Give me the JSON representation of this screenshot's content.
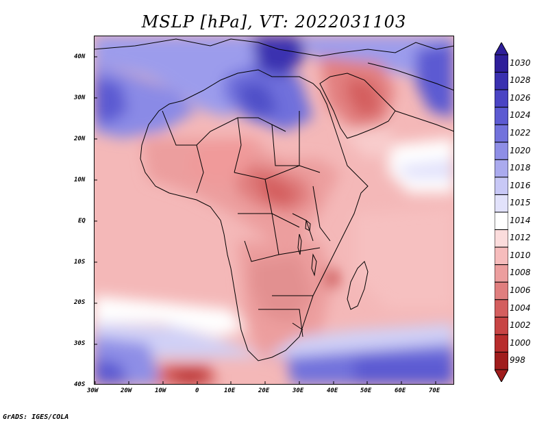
{
  "title": "MSLP [hPa], VT: 2022031103",
  "credit": "GrADS: IGES/COLA",
  "lat_labels": [
    "40N",
    "30N",
    "20N",
    "10N",
    "EQ",
    "10S",
    "20S",
    "30S",
    "40S"
  ],
  "lon_labels": [
    "30W",
    "20W",
    "10W",
    "0",
    "10E",
    "20E",
    "30E",
    "40E",
    "50E",
    "60E",
    "70E"
  ],
  "colorbar": {
    "labels": [
      "1030",
      "1028",
      "1026",
      "1024",
      "1022",
      "1020",
      "1018",
      "1016",
      "1015",
      "1014",
      "1012",
      "1010",
      "1008",
      "1006",
      "1004",
      "1002",
      "1000",
      "998"
    ],
    "colors": [
      "#2e1e9a",
      "#3a30b0",
      "#4a44c4",
      "#5c5ad2",
      "#7272dc",
      "#8e8ee6",
      "#aaaaee",
      "#c8c8f6",
      "#e2e2fb",
      "#ffffff",
      "#fbdcdc",
      "#f6bcbc",
      "#ec9e9e",
      "#e07e7e",
      "#d45e5e",
      "#c84444",
      "#b82c2c",
      "#a01c1c"
    ]
  },
  "colors": {
    "land_outline": "#000000",
    "frame": "#000000"
  }
}
